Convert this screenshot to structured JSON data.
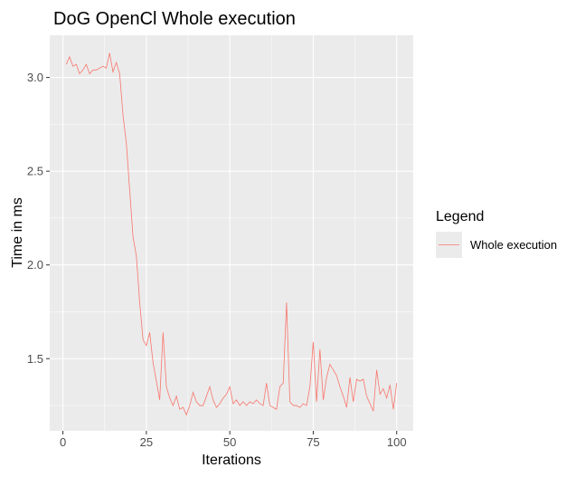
{
  "chart_data": {
    "type": "line",
    "title": "DoG OpenCl Whole execution",
    "xlabel": "Iterations",
    "ylabel": "Time in ms",
    "xlim": [
      -3.95,
      104.95
    ],
    "ylim": [
      1.115,
      3.225
    ],
    "x_ticks": [
      0,
      25,
      50,
      75,
      100
    ],
    "x_tick_labels": [
      "0",
      "25",
      "50",
      "75",
      "100"
    ],
    "y_ticks": [
      1.5,
      2.0,
      2.5,
      3.0
    ],
    "y_tick_labels": [
      "1.5",
      "2.0",
      "2.5",
      "3.0"
    ],
    "grid": true,
    "legend": {
      "title": "Legend",
      "position": "right"
    },
    "series": [
      {
        "name": "Whole execution",
        "color": "#F8766D",
        "x": [
          1,
          2,
          3,
          4,
          5,
          6,
          7,
          8,
          9,
          10,
          11,
          12,
          13,
          14,
          15,
          16,
          17,
          18,
          19,
          20,
          21,
          22,
          23,
          24,
          25,
          26,
          27,
          28,
          29,
          30,
          31,
          32,
          33,
          34,
          35,
          36,
          37,
          38,
          39,
          40,
          41,
          42,
          43,
          44,
          45,
          46,
          47,
          48,
          49,
          50,
          51,
          52,
          53,
          54,
          55,
          56,
          57,
          58,
          59,
          60,
          61,
          62,
          63,
          64,
          65,
          66,
          67,
          68,
          69,
          70,
          71,
          72,
          73,
          74,
          75,
          76,
          77,
          78,
          79,
          80,
          81,
          82,
          83,
          84,
          85,
          86,
          87,
          88,
          89,
          90,
          91,
          92,
          93,
          94,
          95,
          96,
          97,
          98,
          99,
          100
        ],
        "values": [
          3.07,
          3.11,
          3.06,
          3.07,
          3.02,
          3.04,
          3.07,
          3.02,
          3.04,
          3.04,
          3.05,
          3.06,
          3.05,
          3.13,
          3.03,
          3.08,
          3.02,
          2.8,
          2.65,
          2.4,
          2.15,
          2.05,
          1.8,
          1.6,
          1.57,
          1.64,
          1.48,
          1.38,
          1.28,
          1.64,
          1.35,
          1.29,
          1.25,
          1.3,
          1.23,
          1.24,
          1.2,
          1.25,
          1.32,
          1.27,
          1.25,
          1.25,
          1.3,
          1.35,
          1.28,
          1.24,
          1.26,
          1.29,
          1.31,
          1.35,
          1.26,
          1.28,
          1.25,
          1.27,
          1.25,
          1.27,
          1.26,
          1.28,
          1.26,
          1.25,
          1.37,
          1.25,
          1.24,
          1.23,
          1.35,
          1.37,
          1.8,
          1.27,
          1.25,
          1.25,
          1.24,
          1.26,
          1.25,
          1.35,
          1.59,
          1.27,
          1.55,
          1.28,
          1.4,
          1.47,
          1.44,
          1.41,
          1.35,
          1.3,
          1.24,
          1.4,
          1.27,
          1.39,
          1.38,
          1.39,
          1.3,
          1.26,
          1.22,
          1.44,
          1.31,
          1.34,
          1.29,
          1.36,
          1.23,
          1.37
        ]
      }
    ]
  }
}
